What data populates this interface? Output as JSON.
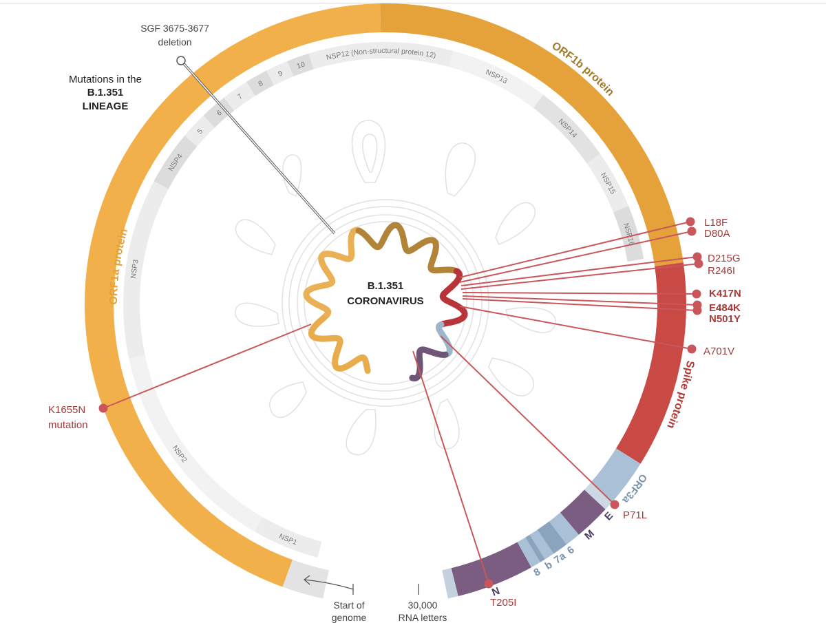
{
  "title": {
    "line1": "Mutations in the",
    "line2": "B.1.351",
    "line3": "LINEAGE"
  },
  "center": {
    "line1": "B.1.351",
    "line2": "CORONAVIRUS"
  },
  "proteins": {
    "orf1a": "ORF1a protein",
    "orf1b": "ORF1b protein",
    "spike": "Spike protein",
    "orf3a": "ORF3a",
    "e": "E",
    "m": "M",
    "orf6": "6",
    "orf7a": "7a",
    "orf7b": "b",
    "orf8": "8",
    "n": "N"
  },
  "nsp": [
    "NSP1",
    "NSP2",
    "NSP3",
    "NSP4",
    "5",
    "6",
    "7",
    "8",
    "9",
    "10",
    "NSP12 (Non-structural protein 12)",
    "NSP13",
    "NSP14",
    "NSP15",
    "NSP16"
  ],
  "deletion": {
    "line1": "SGF 3675-3677",
    "line2": "deletion"
  },
  "mutations": {
    "l18f": "L18F",
    "d80a": "D80A",
    "d215g": "D215G",
    "r246i": "R246I",
    "k417n": "K417N",
    "e484k": "E484K",
    "n501y": "N501Y",
    "a701v": "A701V",
    "k1655n_1": "K1655N",
    "k1655n_2": "mutation",
    "p71l": "P71L",
    "t205i": "T205I"
  },
  "genome": {
    "start_1": "Start of",
    "start_2": "genome",
    "end_1": "30,000",
    "end_2": "RNA letters"
  },
  "colors": {
    "orf1a": "#f2b248",
    "orf1b": "#e7a53a",
    "spike": "#c94a44",
    "orf3a": "#a9c0d6",
    "purple": "#7a5d80",
    "mutation": "#c9565a"
  }
}
